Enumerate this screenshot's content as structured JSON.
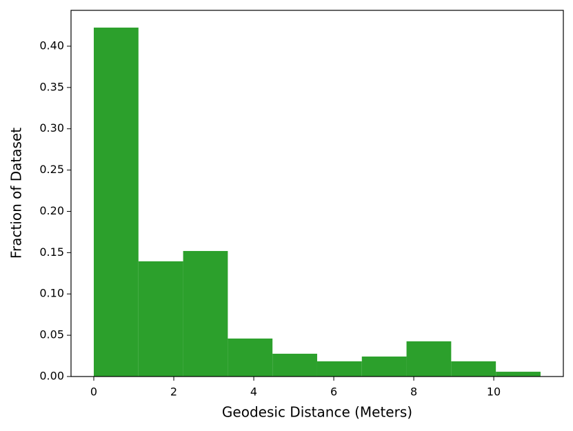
{
  "chart_data": {
    "type": "histogram",
    "x_label": "Geodesic Distance (Meters)",
    "y_label": "Fraction of Dataset",
    "bins": [
      0,
      1.117,
      2.234,
      3.351,
      4.468,
      5.585,
      6.702,
      7.819,
      8.936,
      10.053,
      11.17
    ],
    "values": [
      0.4225,
      0.1395,
      0.152,
      0.046,
      0.0276,
      0.0184,
      0.0242,
      0.0426,
      0.0184,
      0.0058
    ],
    "color": "#2ca02c",
    "xlim": [
      -0.569,
      11.74
    ],
    "xticks": [
      0,
      2,
      4,
      6,
      8,
      10
    ],
    "ylim": [
      0,
      0.4434
    ],
    "yticks": [
      {
        "value": 0,
        "label": "0.00"
      },
      {
        "value": 0.05,
        "label": "0.05"
      },
      {
        "value": 0.1,
        "label": "0.10"
      },
      {
        "value": 0.15,
        "label": "0.15"
      },
      {
        "value": 0.2,
        "label": "0.20"
      },
      {
        "value": 0.25,
        "label": "0.25"
      },
      {
        "value": 0.3,
        "label": "0.30"
      },
      {
        "value": 0.35,
        "label": "0.35"
      },
      {
        "value": 0.4,
        "label": "0.40"
      }
    ],
    "grid": false
  }
}
